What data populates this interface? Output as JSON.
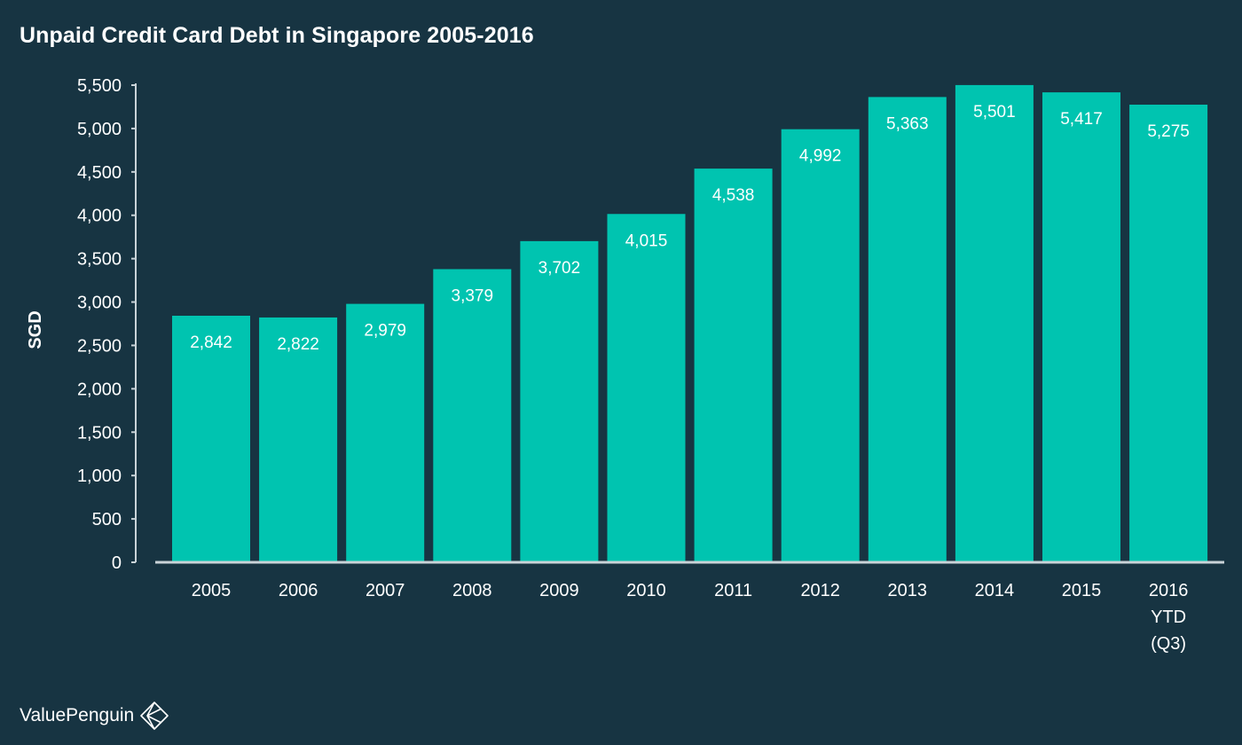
{
  "chart_data": {
    "type": "bar",
    "title": "Unpaid Credit Card Debt in Singapore 2005-2016",
    "xlabel": "",
    "ylabel": "SGD",
    "ylim": [
      0,
      5500
    ],
    "yticks": [
      0,
      500,
      1000,
      1500,
      2000,
      2500,
      3000,
      3500,
      4000,
      4500,
      5000,
      5500
    ],
    "ytick_labels": [
      "0",
      "500",
      "1,000",
      "1,500",
      "2,000",
      "2,500",
      "3,000",
      "3,500",
      "4,000",
      "4,500",
      "5,000",
      "5,500"
    ],
    "grid": false,
    "legend": "none",
    "categories": [
      "2005",
      "2006",
      "2007",
      "2008",
      "2009",
      "2010",
      "2011",
      "2012",
      "2013",
      "2014",
      "2015",
      "2016 YTD (Q3)"
    ],
    "category_lines": [
      [
        "2005"
      ],
      [
        "2006"
      ],
      [
        "2007"
      ],
      [
        "2008"
      ],
      [
        "2009"
      ],
      [
        "2010"
      ],
      [
        "2011"
      ],
      [
        "2012"
      ],
      [
        "2013"
      ],
      [
        "2014"
      ],
      [
        "2015"
      ],
      [
        "2016",
        "YTD",
        "(Q3)"
      ]
    ],
    "values": [
      2842,
      2822,
      2979,
      3379,
      3702,
      4015,
      4538,
      4992,
      5363,
      5501,
      5417,
      5275
    ],
    "value_labels": [
      "2,842",
      "2,822",
      "2,979",
      "3,379",
      "3,702",
      "4,015",
      "4,538",
      "4,992",
      "5,363",
      "5,501",
      "5,417",
      "5,275"
    ],
    "colors": {
      "background": "#173442",
      "bar": "#00c4b0",
      "axis": "#c9d3d8",
      "text": "#ffffff"
    }
  },
  "brand": {
    "name": "ValuePenguin",
    "icon": "valuepenguin-logo-icon"
  }
}
